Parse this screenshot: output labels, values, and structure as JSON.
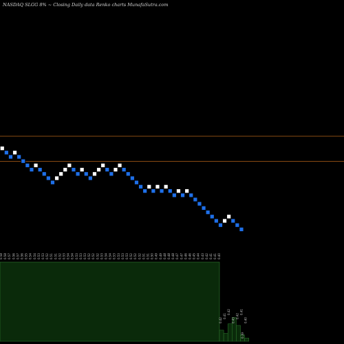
{
  "header": {
    "title": "NASDAQ SLGG 8% ~  Closing Daily data  Renko  charts MunafaSutra.com"
  },
  "colors": {
    "background": "#000000",
    "brick_up": "#ffffff",
    "brick_down": "#1e6fe8",
    "brick_stroke": "#000000",
    "reference_line": "#b86418",
    "volume_fill": "#0a2a0a",
    "volume_edge": "#2f7a2f",
    "text": "#c8c8c8"
  },
  "chart_data": {
    "type": "renko",
    "brick_size_label": "8%",
    "reference_levels": [
      0.62,
      0.55
    ],
    "bricks": [
      {
        "low": 0.58,
        "dir": "up"
      },
      {
        "low": 0.57,
        "dir": "down"
      },
      {
        "low": 0.56,
        "dir": "down"
      },
      {
        "low": 0.57,
        "dir": "up"
      },
      {
        "low": 0.56,
        "dir": "down"
      },
      {
        "low": 0.55,
        "dir": "down"
      },
      {
        "low": 0.54,
        "dir": "down"
      },
      {
        "low": 0.53,
        "dir": "down"
      },
      {
        "low": 0.54,
        "dir": "up"
      },
      {
        "low": 0.53,
        "dir": "down"
      },
      {
        "low": 0.52,
        "dir": "down"
      },
      {
        "low": 0.51,
        "dir": "down"
      },
      {
        "low": 0.5,
        "dir": "down"
      },
      {
        "low": 0.51,
        "dir": "up"
      },
      {
        "low": 0.52,
        "dir": "up"
      },
      {
        "low": 0.53,
        "dir": "up"
      },
      {
        "low": 0.54,
        "dir": "up"
      },
      {
        "low": 0.53,
        "dir": "down"
      },
      {
        "low": 0.52,
        "dir": "down"
      },
      {
        "low": 0.53,
        "dir": "up"
      },
      {
        "low": 0.52,
        "dir": "down"
      },
      {
        "low": 0.51,
        "dir": "down"
      },
      {
        "low": 0.52,
        "dir": "up"
      },
      {
        "low": 0.53,
        "dir": "up"
      },
      {
        "low": 0.54,
        "dir": "up"
      },
      {
        "low": 0.53,
        "dir": "down"
      },
      {
        "low": 0.52,
        "dir": "down"
      },
      {
        "low": 0.53,
        "dir": "up"
      },
      {
        "low": 0.54,
        "dir": "up"
      },
      {
        "low": 0.53,
        "dir": "down"
      },
      {
        "low": 0.52,
        "dir": "down"
      },
      {
        "low": 0.51,
        "dir": "down"
      },
      {
        "low": 0.5,
        "dir": "down"
      },
      {
        "low": 0.49,
        "dir": "down"
      },
      {
        "low": 0.48,
        "dir": "down"
      },
      {
        "low": 0.49,
        "dir": "up"
      },
      {
        "low": 0.48,
        "dir": "down"
      },
      {
        "low": 0.49,
        "dir": "up"
      },
      {
        "low": 0.48,
        "dir": "down"
      },
      {
        "low": 0.49,
        "dir": "up"
      },
      {
        "low": 0.48,
        "dir": "down"
      },
      {
        "low": 0.47,
        "dir": "down"
      },
      {
        "low": 0.48,
        "dir": "up"
      },
      {
        "low": 0.47,
        "dir": "down"
      },
      {
        "low": 0.48,
        "dir": "up"
      },
      {
        "low": 0.47,
        "dir": "down"
      },
      {
        "low": 0.46,
        "dir": "down"
      },
      {
        "low": 0.45,
        "dir": "down"
      },
      {
        "low": 0.44,
        "dir": "down"
      },
      {
        "low": 0.43,
        "dir": "down"
      },
      {
        "low": 0.42,
        "dir": "down"
      },
      {
        "low": 0.41,
        "dir": "down"
      },
      {
        "low": 0.4,
        "dir": "down"
      },
      {
        "low": 0.41,
        "dir": "up"
      },
      {
        "low": 0.42,
        "dir": "up"
      },
      {
        "low": 0.41,
        "dir": "down"
      },
      {
        "low": 0.4,
        "dir": "down"
      },
      {
        "low": 0.39,
        "dir": "down"
      }
    ],
    "tick_labels": [
      "0.58",
      "0.58",
      "0.57",
      "0.56",
      "0.57",
      "0.56",
      "0.55",
      "0.54",
      "0.54",
      "0.53",
      "0.53",
      "0.52",
      "0.51",
      "0.51",
      "0.52",
      "0.53",
      "0.54",
      "0.54",
      "0.53",
      "0.53",
      "0.53",
      "0.52",
      "0.52",
      "0.52",
      "0.53",
      "0.54",
      "0.54",
      "0.53",
      "0.53",
      "0.53",
      "0.53",
      "0.52",
      "0.52",
      "0.52",
      "0.51",
      "0.51",
      "0.50",
      "0.49",
      "0.49",
      "0.48",
      "0.48",
      "0.48",
      "0.47",
      "0.47",
      "0.46",
      "0.46",
      "0.45",
      "0.44",
      "0.43",
      "0.42",
      "0.41",
      "0.41",
      "0.40"
    ],
    "volume_region_labels": [
      "0.42",
      "0.41",
      "0.42",
      "0.43",
      "0.42",
      "0.41",
      "0.40"
    ],
    "volume_bottom_label": "0.39",
    "volume": [
      {
        "value": 1.0
      },
      {
        "value": 0.14
      },
      {
        "value": 0.1
      },
      {
        "value": 0.22
      },
      {
        "value": 0.3
      },
      {
        "value": 0.2
      },
      {
        "value": 0.08
      },
      {
        "value": 0.04
      }
    ]
  }
}
